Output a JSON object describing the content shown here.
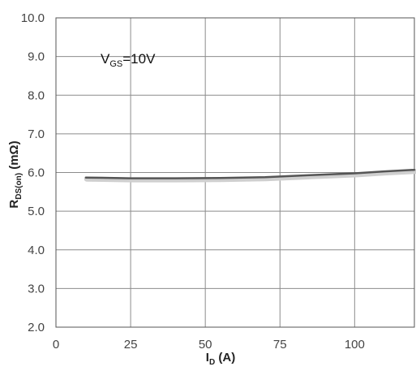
{
  "chart_data": {
    "type": "line",
    "title": "",
    "xlabel_main": "I",
    "xlabel_sub": "D",
    "xlabel_unit": " (A)",
    "ylabel_main": "R",
    "ylabel_sub": "DS(on)",
    "ylabel_unit": " (mΩ)",
    "annotation_main": "V",
    "annotation_sub": "GS",
    "annotation_value": "=10V",
    "xlim": [
      0,
      120
    ],
    "ylim": [
      2.0,
      10.0
    ],
    "x_ticks": [
      0,
      25,
      50,
      75,
      100
    ],
    "x_tick_labels": [
      "0",
      "25",
      "50",
      "75",
      "100"
    ],
    "y_ticks": [
      2.0,
      3.0,
      4.0,
      5.0,
      6.0,
      7.0,
      8.0,
      9.0,
      10.0
    ],
    "y_tick_labels": [
      "2.0",
      "3.0",
      "4.0",
      "5.0",
      "6.0",
      "7.0",
      "8.0",
      "9.0",
      "10.0"
    ],
    "grid": true,
    "series": [
      {
        "color": "#555555",
        "x": [
          10,
          25,
          40,
          55,
          70,
          85,
          100,
          110,
          120
        ],
        "y": [
          5.87,
          5.85,
          5.85,
          5.86,
          5.88,
          5.93,
          5.98,
          6.03,
          6.07
        ]
      }
    ]
  }
}
